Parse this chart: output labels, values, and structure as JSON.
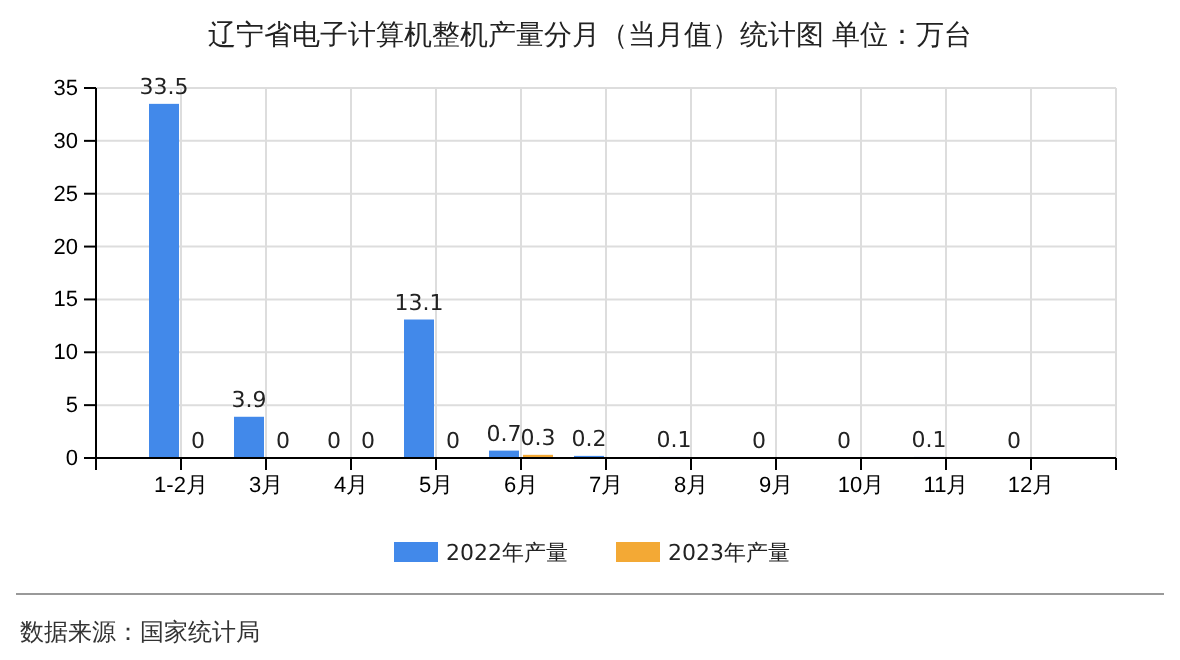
{
  "chart_data": {
    "type": "bar",
    "title": "辽宁省电子计算机整机产量分月（当月值）统计图 单位：万台",
    "categories": [
      "1-2月",
      "3月",
      "4月",
      "5月",
      "6月",
      "7月",
      "8月",
      "9月",
      "10月",
      "11月",
      "12月"
    ],
    "series": [
      {
        "name": "2022年产量",
        "color": "#4289ea",
        "values": [
          33.5,
          3.9,
          0,
          13.1,
          0.7,
          0.2,
          0.1,
          0,
          0,
          0.1,
          0
        ]
      },
      {
        "name": "2023年产量",
        "color": "#f3a935",
        "values": [
          0,
          0,
          0,
          0,
          0.3,
          null,
          null,
          null,
          null,
          null,
          null
        ]
      }
    ],
    "ylim": [
      0,
      35
    ],
    "yticks": [
      0,
      5,
      10,
      15,
      20,
      25,
      30,
      35
    ],
    "grid": true,
    "legend": "bottom",
    "data_labels": true,
    "annotations": [
      "数据来源：国家统计局"
    ]
  }
}
